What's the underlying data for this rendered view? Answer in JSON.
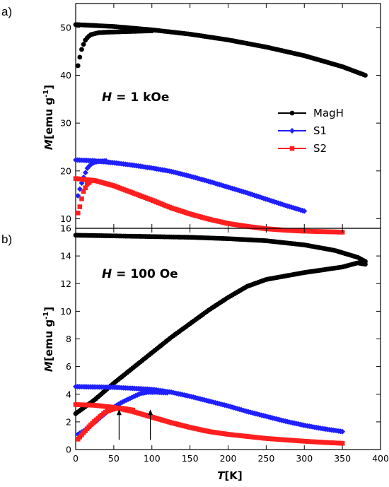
{
  "chart_data": [
    {
      "type": "scatter",
      "panel_label": "a)",
      "annotation": {
        "var": "H",
        "text": " = 1 kOe"
      },
      "xlim": [
        0,
        400
      ],
      "ylim": [
        8,
        55
      ],
      "yticks": [
        10,
        20,
        30,
        40,
        50
      ],
      "ylabel": {
        "var": "M",
        "unit": "[emu g",
        "sup": "-1",
        "close": "]"
      },
      "grid": false,
      "legend_position": "center-right",
      "series": [
        {
          "name": "MagH",
          "color": "#000000",
          "marker": "circle",
          "fc": {
            "x": [
              0,
              50,
              100,
              150,
              200,
              250,
              300,
              350,
              380
            ],
            "y": [
              50.6,
              50.2,
              49.5,
              48.6,
              47.4,
              45.9,
              44.1,
              41.8,
              40.0
            ]
          },
          "zfc": {
            "x": [
              3,
              5,
              8,
              12,
              16,
              20,
              30,
              40,
              60,
              80,
              100
            ],
            "y": [
              42.0,
              43.5,
              45.5,
              47.2,
              48.0,
              48.5,
              48.9,
              49.0,
              49.1,
              49.2,
              49.3
            ]
          }
        },
        {
          "name": "S1",
          "color": "#1f1fff",
          "marker": "diamond",
          "fc": {
            "x": [
              0,
              25,
              50,
              75,
              100,
              125,
              150,
              175,
              200,
              225,
              250,
              275,
              300
            ],
            "y": [
              22.3,
              22.1,
              21.7,
              21.2,
              20.6,
              19.9,
              18.9,
              17.8,
              16.6,
              15.4,
              14.1,
              12.8,
              11.6
            ]
          },
          "zfc": {
            "x": [
              3,
              6,
              10,
              15,
              20,
              25,
              30,
              40
            ],
            "y": [
              14.8,
              16.5,
              18.5,
              20.5,
              21.4,
              21.8,
              22.0,
              22.1
            ]
          }
        },
        {
          "name": "S2",
          "color": "#ff1f1f",
          "marker": "square",
          "fc": {
            "x": [
              0,
              25,
              50,
              75,
              100,
              125,
              150,
              175,
              200,
              225,
              250,
              275,
              300,
              325,
              350
            ],
            "y": [
              18.4,
              18.0,
              16.9,
              15.4,
              13.9,
              12.3,
              11.0,
              9.9,
              9.0,
              8.4,
              7.9,
              7.6,
              7.4,
              7.3,
              7.2
            ]
          },
          "zfc": {
            "x": [
              3,
              5,
              7,
              10,
              15,
              20
            ],
            "y": [
              11.2,
              12.2,
              13.6,
              15.6,
              17.2,
              17.9
            ]
          }
        }
      ]
    },
    {
      "type": "scatter",
      "panel_label": "b)",
      "annotation": {
        "var": "H",
        "text": " = 100 Oe"
      },
      "xlim": [
        0,
        400
      ],
      "ylim": [
        0,
        16
      ],
      "xticks": [
        0,
        50,
        100,
        150,
        200,
        250,
        300,
        350,
        400
      ],
      "yticks": [
        0,
        2,
        4,
        6,
        8,
        10,
        12,
        14,
        16
      ],
      "xlabel": {
        "var": "T",
        "unit": "[K]"
      },
      "ylabel": {
        "var": "M",
        "unit": "[emu g",
        "sup": "-1",
        "close": "]"
      },
      "grid": false,
      "arrows_at_x": [
        57,
        98
      ],
      "series": [
        {
          "name": "MagH",
          "color": "#000000",
          "marker": "circle",
          "fc": {
            "x": [
              0,
              50,
              100,
              150,
              200,
              250,
              300,
              340,
              370,
              380
            ],
            "y": [
              15.5,
              15.45,
              15.4,
              15.35,
              15.25,
              15.1,
              14.8,
              14.4,
              13.9,
              13.6
            ]
          },
          "zfc": {
            "x": [
              0,
              25,
              50,
              75,
              100,
              125,
              150,
              175,
              200,
              225,
              250,
              275,
              300,
              325,
              350,
              370,
              380
            ],
            "y": [
              2.6,
              3.6,
              4.8,
              5.9,
              7.0,
              8.1,
              9.1,
              10.1,
              11.0,
              11.8,
              12.3,
              12.55,
              12.8,
              13.0,
              13.2,
              13.5,
              13.4
            ]
          }
        },
        {
          "name": "S1",
          "color": "#1f1fff",
          "marker": "diamond",
          "fc": {
            "x": [
              0,
              50,
              100,
              125,
              150,
              175,
              200,
              225,
              250,
              275,
              300,
              325,
              350
            ],
            "y": [
              4.55,
              4.5,
              4.35,
              4.15,
              3.85,
              3.5,
              3.15,
              2.75,
              2.4,
              2.05,
              1.75,
              1.5,
              1.3
            ]
          },
          "zfc": {
            "x": [
              3,
              15,
              30,
              45,
              60,
              75,
              85,
              95,
              105,
              120
            ],
            "y": [
              1.1,
              1.5,
              2.2,
              2.9,
              3.4,
              3.8,
              4.05,
              4.15,
              4.15,
              4.1
            ]
          }
        },
        {
          "name": "S2",
          "color": "#ff1f1f",
          "marker": "square",
          "fc": {
            "x": [
              0,
              25,
              50,
              75,
              100,
              125,
              150,
              175,
              200,
              225,
              250,
              275,
              300,
              325,
              350
            ],
            "y": [
              3.25,
              3.2,
              3.05,
              2.75,
              2.35,
              1.95,
              1.6,
              1.3,
              1.1,
              0.95,
              0.8,
              0.7,
              0.6,
              0.52,
              0.45
            ]
          },
          "zfc": {
            "x": [
              3,
              10,
              20,
              30,
              40,
              50,
              57,
              65,
              75
            ],
            "y": [
              0.75,
              1.2,
              1.8,
              2.3,
              2.75,
              2.95,
              3.0,
              2.95,
              2.85
            ]
          }
        }
      ]
    }
  ]
}
